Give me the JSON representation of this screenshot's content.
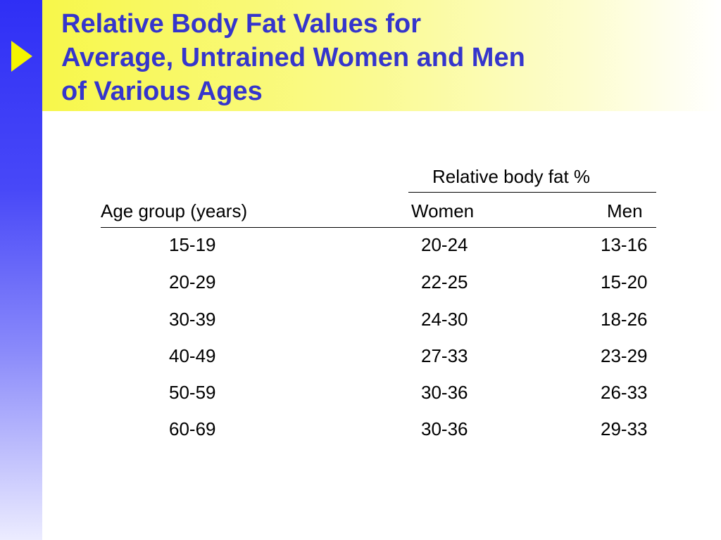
{
  "slide": {
    "title_lines": [
      "Relative Body Fat Values for",
      "Average, Untrained Women and Men",
      "of Various Ages"
    ]
  },
  "table": {
    "group_header": "Relative body fat %",
    "columns": [
      "Age group (years)",
      "Women",
      "Men"
    ],
    "rows": [
      [
        "15-19",
        "20-24",
        "13-16"
      ],
      [
        "20-29",
        "22-25",
        "15-20"
      ],
      [
        "30-39",
        "24-30",
        "18-26"
      ],
      [
        "40-49",
        "27-33",
        "23-29"
      ],
      [
        "50-59",
        "30-36",
        "26-33"
      ],
      [
        "60-69",
        "30-36",
        "29-33"
      ]
    ]
  },
  "colors": {
    "title_text": "#3535cc",
    "left_bar": "#2f2ff5",
    "title_band": "#f7f74a",
    "arrow": "#f4f400"
  }
}
